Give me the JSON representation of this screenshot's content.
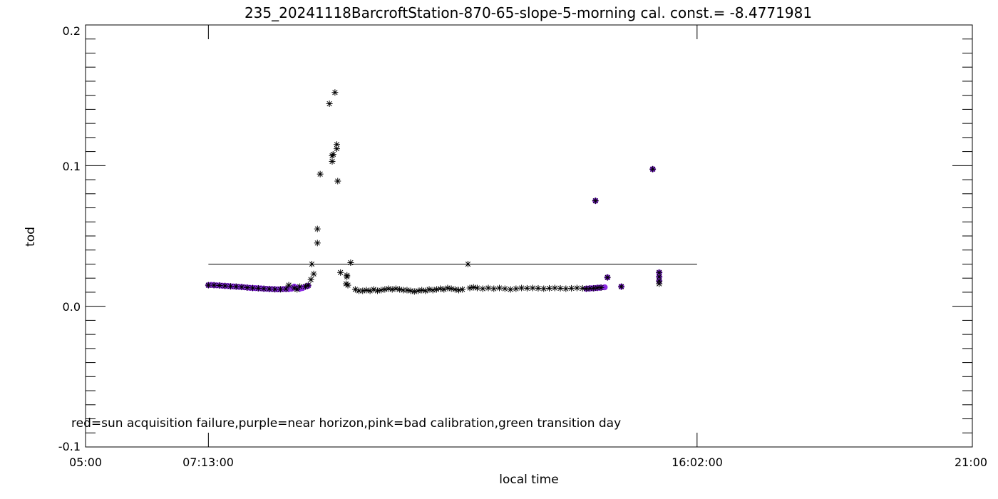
{
  "chart_data": {
    "type": "scatter",
    "title": "235_20241118BarcroftStation-870-65-slope-5-morning cal. const.= -8.4771981",
    "xlabel": "local time",
    "ylabel": "tod",
    "xlim": [
      "05:00",
      "21:00"
    ],
    "ylim": [
      -0.1,
      0.2
    ],
    "x_tick_labels": [
      "05:00",
      "07:13:00",
      "16:02:00",
      "21:00"
    ],
    "y_tick_labels": [
      "-0.1",
      "0.0",
      "0.1",
      "0.2"
    ],
    "annotation": "red=sun acquisition failure,purple=near horizon,pink=bad calibration,green transition day",
    "reference_line": {
      "y": 0.03,
      "x_start": "07:13:00",
      "x_end": "16:02:00",
      "color": "#000000"
    },
    "series": [
      {
        "color": "#8a2be2",
        "marker": "filled-circle",
        "points": [
          [
            "07:13",
            0.015
          ],
          [
            "07:16",
            0.0152
          ],
          [
            "07:19",
            0.015
          ],
          [
            "07:22",
            0.0149
          ],
          [
            "07:25",
            0.0148
          ],
          [
            "07:28",
            0.0146
          ],
          [
            "07:31",
            0.0145
          ],
          [
            "07:34",
            0.0144
          ],
          [
            "07:37",
            0.0142
          ],
          [
            "07:40",
            0.0141
          ],
          [
            "07:43",
            0.014
          ],
          [
            "07:46",
            0.0138
          ],
          [
            "07:49",
            0.0137
          ],
          [
            "07:52",
            0.0135
          ],
          [
            "07:55",
            0.0133
          ],
          [
            "07:58",
            0.0131
          ],
          [
            "08:01",
            0.013
          ],
          [
            "08:04",
            0.0129
          ],
          [
            "08:07",
            0.0128
          ],
          [
            "08:10",
            0.0127
          ],
          [
            "08:13",
            0.0125
          ],
          [
            "08:16",
            0.0124
          ],
          [
            "08:19",
            0.0123
          ],
          [
            "08:22",
            0.0122
          ],
          [
            "08:25",
            0.0121
          ],
          [
            "08:28",
            0.012
          ],
          [
            "08:31",
            0.0121
          ],
          [
            "08:34",
            0.0122
          ],
          [
            "08:37",
            0.0123
          ],
          [
            "08:40",
            0.0122
          ],
          [
            "08:43",
            0.0125
          ],
          [
            "08:46",
            0.014
          ],
          [
            "08:49",
            0.013
          ],
          [
            "08:52",
            0.0125
          ],
          [
            "08:55",
            0.013
          ],
          [
            "08:58",
            0.014
          ],
          [
            "09:01",
            0.0145
          ],
          [
            "14:02",
            0.0125
          ],
          [
            "14:04",
            0.0126
          ],
          [
            "14:06",
            0.0127
          ],
          [
            "14:08",
            0.0128
          ],
          [
            "14:10",
            0.0128
          ],
          [
            "14:12",
            0.013
          ],
          [
            "14:14",
            0.0131
          ],
          [
            "14:16",
            0.0132
          ],
          [
            "14:18",
            0.0133
          ],
          [
            "14:22",
            0.0135
          ],
          [
            "14:12",
            0.075
          ],
          [
            "14:25",
            0.0205
          ],
          [
            "14:40",
            0.014
          ],
          [
            "15:14",
            0.0975
          ],
          [
            "15:21",
            0.024
          ],
          [
            "15:21",
            0.021
          ],
          [
            "15:21",
            0.018
          ]
        ]
      },
      {
        "color": "#000000",
        "marker": "asterisk",
        "points": [
          [
            "07:13",
            0.015
          ],
          [
            "07:19",
            0.015
          ],
          [
            "07:25",
            0.0148
          ],
          [
            "07:31",
            0.0145
          ],
          [
            "07:37",
            0.0142
          ],
          [
            "07:43",
            0.014
          ],
          [
            "07:49",
            0.0137
          ],
          [
            "07:55",
            0.0133
          ],
          [
            "08:01",
            0.013
          ],
          [
            "08:07",
            0.0128
          ],
          [
            "08:13",
            0.0125
          ],
          [
            "08:19",
            0.0123
          ],
          [
            "08:25",
            0.0121
          ],
          [
            "08:31",
            0.0121
          ],
          [
            "08:37",
            0.0123
          ],
          [
            "08:40",
            0.015
          ],
          [
            "08:46",
            0.013
          ],
          [
            "08:49",
            0.012
          ],
          [
            "08:52",
            0.014
          ],
          [
            "08:58",
            0.014
          ],
          [
            "09:01",
            0.015
          ],
          [
            "09:04",
            0.019
          ],
          [
            "09:05",
            0.03
          ],
          [
            "09:07",
            0.023
          ],
          [
            "09:11",
            0.055
          ],
          [
            "09:11",
            0.045
          ],
          [
            "09:14",
            0.094
          ],
          [
            "09:24",
            0.144
          ],
          [
            "09:27",
            0.107
          ],
          [
            "09:27",
            0.103
          ],
          [
            "09:28",
            0.108
          ],
          [
            "09:30",
            0.152
          ],
          [
            "09:32",
            0.112
          ],
          [
            "09:32",
            0.115
          ],
          [
            "09:33",
            0.089
          ],
          [
            "09:36",
            0.024
          ],
          [
            "09:42",
            0.016
          ],
          [
            "09:43",
            0.022
          ],
          [
            "09:43",
            0.021
          ],
          [
            "09:44",
            0.015
          ],
          [
            "09:47",
            0.031
          ],
          [
            "09:52",
            0.012
          ],
          [
            "09:56",
            0.011
          ],
          [
            "10:00",
            0.011
          ],
          [
            "10:04",
            0.0115
          ],
          [
            "10:08",
            0.011
          ],
          [
            "10:12",
            0.012
          ],
          [
            "10:16",
            0.011
          ],
          [
            "10:20",
            0.0115
          ],
          [
            "10:24",
            0.012
          ],
          [
            "10:28",
            0.0125
          ],
          [
            "10:32",
            0.012
          ],
          [
            "10:36",
            0.0125
          ],
          [
            "10:40",
            0.012
          ],
          [
            "10:44",
            0.0115
          ],
          [
            "10:48",
            0.0115
          ],
          [
            "10:52",
            0.011
          ],
          [
            "10:56",
            0.0105
          ],
          [
            "11:00",
            0.011
          ],
          [
            "11:04",
            0.0115
          ],
          [
            "11:08",
            0.011
          ],
          [
            "11:12",
            0.012
          ],
          [
            "11:16",
            0.0115
          ],
          [
            "11:20",
            0.012
          ],
          [
            "11:24",
            0.0125
          ],
          [
            "11:28",
            0.012
          ],
          [
            "11:32",
            0.013
          ],
          [
            "11:36",
            0.0125
          ],
          [
            "11:40",
            0.012
          ],
          [
            "11:44",
            0.0115
          ],
          [
            "11:48",
            0.012
          ],
          [
            "11:54",
            0.03
          ],
          [
            "11:56",
            0.013
          ],
          [
            "12:00",
            0.0135
          ],
          [
            "12:04",
            0.013
          ],
          [
            "12:10",
            0.0125
          ],
          [
            "12:16",
            0.013
          ],
          [
            "12:22",
            0.0125
          ],
          [
            "12:28",
            0.013
          ],
          [
            "12:34",
            0.0125
          ],
          [
            "12:40",
            0.012
          ],
          [
            "12:46",
            0.0125
          ],
          [
            "12:52",
            0.013
          ],
          [
            "12:58",
            0.0128
          ],
          [
            "13:04",
            0.013
          ],
          [
            "13:10",
            0.0128
          ],
          [
            "13:16",
            0.0125
          ],
          [
            "13:22",
            0.0128
          ],
          [
            "13:28",
            0.013
          ],
          [
            "13:34",
            0.0128
          ],
          [
            "13:40",
            0.0125
          ],
          [
            "13:46",
            0.0128
          ],
          [
            "13:52",
            0.013
          ],
          [
            "13:58",
            0.0128
          ],
          [
            "14:02",
            0.0125
          ],
          [
            "14:06",
            0.0127
          ],
          [
            "14:10",
            0.0128
          ],
          [
            "14:14",
            0.0131
          ],
          [
            "14:18",
            0.0133
          ],
          [
            "14:12",
            0.075
          ],
          [
            "14:25",
            0.0205
          ],
          [
            "14:40",
            0.014
          ],
          [
            "15:14",
            0.0975
          ],
          [
            "15:21",
            0.024
          ],
          [
            "15:21",
            0.021
          ],
          [
            "15:21",
            0.018
          ],
          [
            "15:21",
            0.016
          ]
        ]
      }
    ]
  }
}
